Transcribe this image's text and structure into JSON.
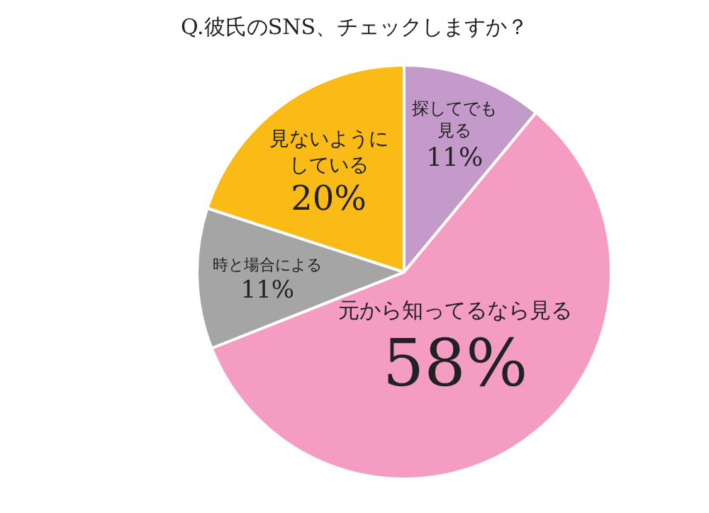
{
  "chart_data": {
    "type": "pie",
    "title": "Q.彼氏のSNS、チェックしますか？",
    "categories": [
      "探してでも見る",
      "元から知ってるなら見る",
      "時と場合による",
      "見ないようにしている"
    ],
    "values": [
      11,
      58,
      11,
      20
    ],
    "value_labels": [
      "11%",
      "58%",
      "11%",
      "20%"
    ],
    "colors": [
      "#c39ac9",
      "#f59cc3",
      "#a5a5a5",
      "#fbbb17"
    ]
  }
}
